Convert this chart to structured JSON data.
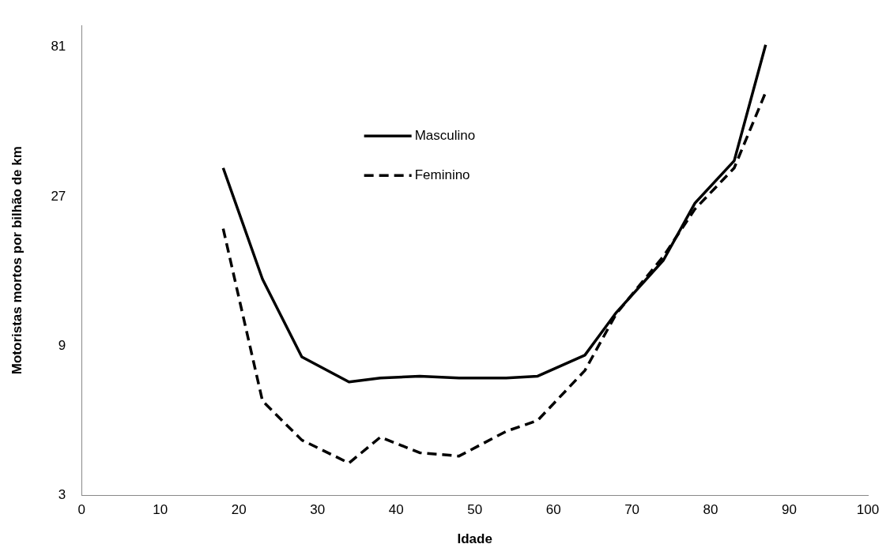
{
  "chart_data": {
    "type": "line",
    "xlabel": "Idade",
    "ylabel": "Motoristas mortos por bilhão de km",
    "log": "y",
    "grid": false,
    "legend": "top",
    "marker": "none",
    "xlim": [
      0,
      100
    ],
    "xticks": [
      0,
      10,
      20,
      30,
      40,
      50,
      60,
      70,
      80,
      90,
      100
    ],
    "ylim": [
      3,
      95
    ],
    "yticks": [
      3,
      9,
      27,
      81
    ],
    "x": [
      18,
      23,
      28,
      34,
      38,
      43,
      48,
      54,
      58,
      64,
      68,
      74,
      78,
      83,
      87
    ],
    "series": [
      {
        "name": "Masculino",
        "color": "#000000",
        "line_style": "solid",
        "values": [
          33.3,
          14.7,
          8.3,
          6.9,
          7.1,
          7.2,
          7.1,
          7.1,
          7.2,
          8.4,
          11.5,
          16.9,
          25.7,
          35.1,
          82.4
        ]
      },
      {
        "name": "Feminino",
        "color": "#000000",
        "line_style": "dashed",
        "values": [
          21.3,
          6.0,
          4.5,
          3.8,
          4.6,
          4.1,
          4.0,
          4.8,
          5.2,
          7.5,
          11.4,
          17.4,
          24.6,
          33.3,
          58.1
        ]
      }
    ]
  }
}
